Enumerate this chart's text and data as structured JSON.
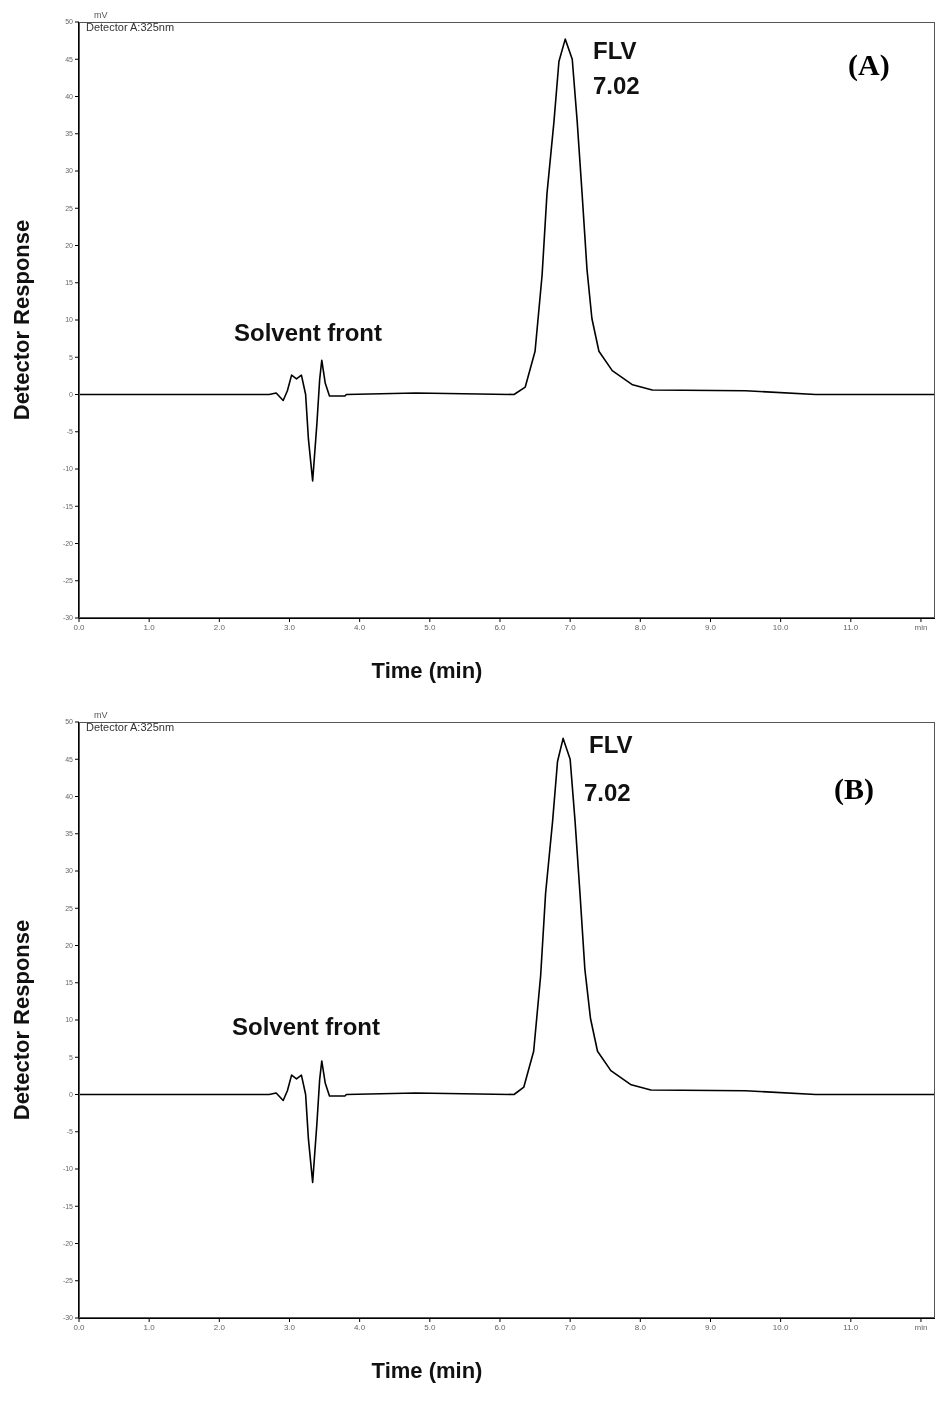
{
  "chart_data": [
    {
      "type": "line",
      "title": "(A)",
      "xlabel": "Time (min)",
      "ylabel": "Detector Response",
      "annotations": [
        "Detector A:325nm",
        "mV",
        "Solvent front",
        "FLV",
        "7.02"
      ],
      "xlim": [
        0,
        12.2
      ],
      "xticks": [
        {
          "value": 0,
          "label": "0.0"
        },
        {
          "value": 1,
          "label": "1.0"
        },
        {
          "value": 2,
          "label": "2.0"
        },
        {
          "value": 3,
          "label": "3.0"
        },
        {
          "value": 4,
          "label": "4.0"
        },
        {
          "value": 5,
          "label": "5.0"
        },
        {
          "value": 6,
          "label": "6.0"
        },
        {
          "value": 7,
          "label": "7.0"
        },
        {
          "value": 8,
          "label": "8.0"
        },
        {
          "value": 9,
          "label": "9.0"
        },
        {
          "value": 10,
          "label": "10.0"
        },
        {
          "value": 11,
          "label": "11.0"
        },
        {
          "value": 12,
          "label": "min"
        }
      ],
      "ylim": [
        -30,
        50
      ],
      "yticks": [
        -30,
        -25,
        -20,
        -15,
        -10,
        -5,
        0,
        5,
        10,
        15,
        20,
        25,
        30,
        35,
        40,
        45,
        50
      ],
      "series": [
        {
          "color": "#000000",
          "x": [
            0,
            2.71,
            2.81,
            2.91,
            2.97,
            3.03,
            3.1,
            3.17,
            3.23,
            3.27,
            3.33,
            3.39,
            3.43,
            3.46,
            3.51,
            3.57,
            3.79,
            3.81,
            4.8,
            6.2,
            6.36,
            6.5,
            6.6,
            6.67,
            6.77,
            6.84,
            6.93,
            7.03,
            7.1,
            7.17,
            7.24,
            7.31,
            7.41,
            7.6,
            7.89,
            8.17,
            9.5,
            10.5,
            12.2
          ],
          "values": [
            0,
            0,
            0.2,
            -0.8,
            0.5,
            2.6,
            2.1,
            2.6,
            0,
            -6,
            -11.6,
            -4,
            2,
            4.6,
            1.5,
            -0.2,
            -0.2,
            0,
            0.2,
            0,
            1,
            5.8,
            16,
            27,
            36.7,
            44.7,
            47.7,
            45,
            36.7,
            27,
            16.8,
            10.2,
            5.8,
            3.2,
            1.3,
            0.6,
            0.5,
            0,
            0
          ]
        }
      ]
    },
    {
      "type": "line",
      "title": "(B)",
      "xlabel": "Time (min)",
      "ylabel": "Detector Response",
      "annotations": [
        "Detector A:325nm",
        "mV",
        "Solvent front",
        "FLV",
        "7.02"
      ],
      "xlim": [
        0,
        12.2
      ],
      "xticks": [
        {
          "value": 0,
          "label": "0.0"
        },
        {
          "value": 1,
          "label": "1.0"
        },
        {
          "value": 2,
          "label": "2.0"
        },
        {
          "value": 3,
          "label": "3.0"
        },
        {
          "value": 4,
          "label": "4.0"
        },
        {
          "value": 5,
          "label": "5.0"
        },
        {
          "value": 6,
          "label": "6.0"
        },
        {
          "value": 7,
          "label": "7.0"
        },
        {
          "value": 8,
          "label": "8.0"
        },
        {
          "value": 9,
          "label": "9.0"
        },
        {
          "value": 10,
          "label": "10.0"
        },
        {
          "value": 11,
          "label": "11.0"
        },
        {
          "value": 12,
          "label": "min"
        }
      ],
      "ylim": [
        -30,
        50
      ],
      "yticks": [
        -30,
        -25,
        -20,
        -15,
        -10,
        -5,
        0,
        5,
        10,
        15,
        20,
        25,
        30,
        35,
        40,
        45,
        50
      ],
      "series": [
        {
          "color": "#000000",
          "x": [
            0,
            2.71,
            2.81,
            2.91,
            2.97,
            3.03,
            3.1,
            3.17,
            3.23,
            3.27,
            3.33,
            3.39,
            3.43,
            3.46,
            3.51,
            3.57,
            3.79,
            3.81,
            4.8,
            6.2,
            6.34,
            6.48,
            6.58,
            6.65,
            6.75,
            6.82,
            6.9,
            7.0,
            7.07,
            7.14,
            7.21,
            7.29,
            7.39,
            7.58,
            7.87,
            8.15,
            9.5,
            10.5,
            12.2
          ],
          "values": [
            0,
            0,
            0.2,
            -0.8,
            0.5,
            2.6,
            2.1,
            2.6,
            0,
            -6,
            -11.8,
            -4,
            2,
            4.5,
            1.5,
            -0.2,
            -0.2,
            0,
            0.2,
            0,
            1,
            5.8,
            16,
            27,
            36.7,
            44.7,
            47.8,
            45,
            36.7,
            27,
            16.8,
            10.2,
            5.8,
            3.2,
            1.3,
            0.6,
            0.5,
            0,
            0
          ]
        }
      ]
    }
  ]
}
